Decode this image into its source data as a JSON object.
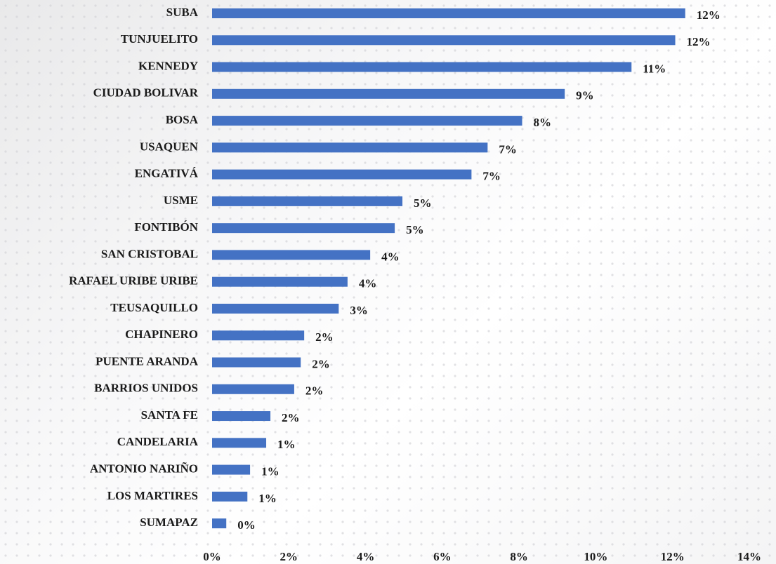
{
  "chart_data": {
    "type": "barh",
    "categories": [
      "SUBA",
      "TUNJUELITO",
      "KENNEDY",
      "CIUDAD BOLIVAR",
      "BOSA",
      "USAQUEN",
      "ENGATIVÁ",
      "USME",
      "FONTIBÓN",
      "SAN CRISTOBAL",
      "RAFAEL URIBE URIBE",
      "TEUSAQUILLO",
      "CHAPINERO",
      "PUENTE ARANDA",
      "BARRIOS UNIDOS",
      "SANTA FE",
      "CANDELARIA",
      "ANTONIO NARIÑO",
      "LOS MARTIRES",
      "SUMAPAZ"
    ],
    "values": [
      12.33,
      12.07,
      10.93,
      9.19,
      8.08,
      7.18,
      6.76,
      4.96,
      4.76,
      4.12,
      3.53,
      3.3,
      2.4,
      2.31,
      2.14,
      1.52,
      1.41,
      0.99,
      0.92,
      0.37
    ],
    "value_labels": [
      "12%",
      "12%",
      "11%",
      "9%",
      "8%",
      "7%",
      "7%",
      "5%",
      "5%",
      "4%",
      "4%",
      "3%",
      "2%",
      "2%",
      "2%",
      "2%",
      "1%",
      "1%",
      "1%",
      "0%"
    ],
    "color": "#4472c4",
    "xlim": [
      0,
      14
    ],
    "xticks": [
      {
        "value": 0,
        "label": "0%"
      },
      {
        "value": 2,
        "label": "2%"
      },
      {
        "value": 4,
        "label": "4%"
      },
      {
        "value": 6,
        "label": "6%"
      },
      {
        "value": 8,
        "label": "8%"
      },
      {
        "value": 10,
        "label": "10%"
      },
      {
        "value": 12,
        "label": "12%"
      },
      {
        "value": 14,
        "label": "14%"
      }
    ],
    "grid": false
  }
}
